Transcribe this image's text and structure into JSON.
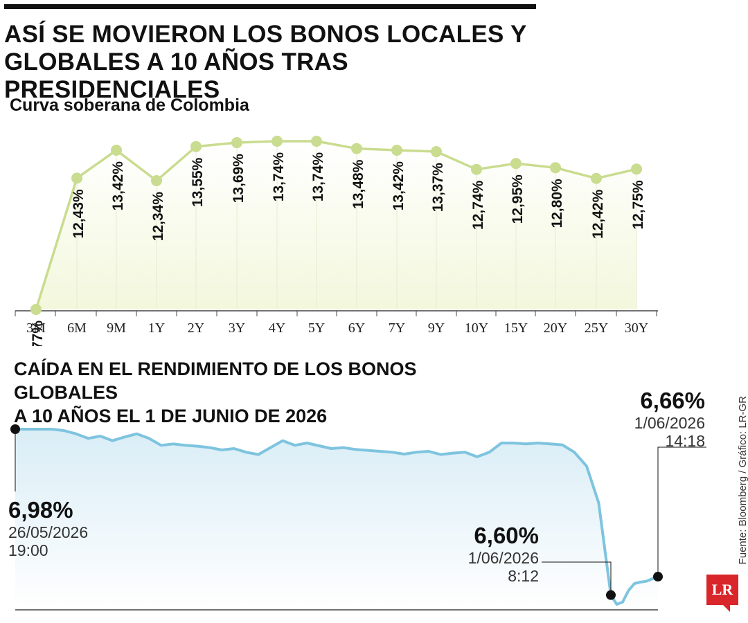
{
  "headline": "ASÍ SE MOVIERON LOS BONOS LOCALES Y GLOBALES A 10 AÑOS TRAS PRESIDENCIALES",
  "source": "Fuente: Bloomberg / Gráfico: LR-GR",
  "logo": "LR",
  "colors": {
    "curve_line": "#c9dc8f",
    "curve_fill": "#f3f7dc",
    "yield_line": "#7ec4df",
    "yield_fill": "#d9edf6",
    "text": "#111111"
  },
  "chart_data": [
    {
      "type": "line",
      "title": "Curva soberana de Colombia",
      "categories": [
        "3M",
        "6M",
        "9M",
        "1Y",
        "2Y",
        "3Y",
        "4Y",
        "5Y",
        "6Y",
        "7Y",
        "9Y",
        "10Y",
        "15Y",
        "20Y",
        "25Y",
        "30Y"
      ],
      "values": [
        7.77,
        12.43,
        13.42,
        12.34,
        13.55,
        13.69,
        13.74,
        13.74,
        13.48,
        13.42,
        13.37,
        12.74,
        12.95,
        12.8,
        12.42,
        12.75
      ],
      "labels": [
        "7,77%",
        "12,43%",
        "13,42%",
        "12,34%",
        "13,55%",
        "13,69%",
        "13,74%",
        "13,74%",
        "13,48%",
        "13,42%",
        "13,37%",
        "12,74%",
        "12,95%",
        "12,80%",
        "12,42%",
        "12,75%"
      ],
      "unit": "%"
    },
    {
      "type": "area",
      "title_lines": [
        "CAÍDA EN EL RENDIMIENTO DE LOS BONOS GLOBALES",
        "A 10 AÑOS EL 1 DE JUNIO DE 2026"
      ],
      "x_start": "26/05/2026 19:00",
      "x_end": "1/06/2026 14:18",
      "y_unit": "%",
      "series": [
        {
          "values": [
            6.98,
            6.98,
            6.98,
            6.98,
            6.977,
            6.97,
            6.96,
            6.965,
            6.955,
            6.963,
            6.97,
            6.96,
            6.945,
            6.948,
            6.945,
            6.943,
            6.94,
            6.935,
            6.938,
            6.93,
            6.925,
            6.94,
            6.955,
            6.945,
            6.95,
            6.944,
            6.938,
            6.94,
            6.936,
            6.934,
            6.932,
            6.93,
            6.926,
            6.93,
            6.932,
            6.925,
            6.928,
            6.93,
            6.92,
            6.93,
            6.95,
            6.95,
            6.948,
            6.95,
            6.948,
            6.946,
            6.93,
            6.9,
            6.82,
            6.62,
            6.6,
            6.605,
            6.63,
            6.645,
            6.648,
            6.65,
            6.655,
            6.66
          ]
        }
      ],
      "annotations": [
        {
          "value_label": "6,98%",
          "date": "26/05/2026",
          "time": "19:00"
        },
        {
          "value_label": "6,60%",
          "date": "1/06/2026",
          "time": "8:12"
        },
        {
          "value_label": "6,66%",
          "date": "1/06/2026",
          "time": "14:18"
        }
      ]
    }
  ]
}
